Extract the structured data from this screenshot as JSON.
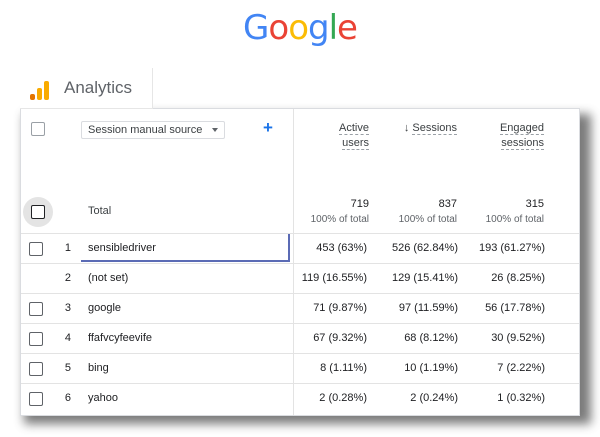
{
  "logo": {
    "text": "Google",
    "letters": [
      {
        "ch": "G",
        "color": "#4285F4"
      },
      {
        "ch": "o",
        "color": "#EA4335"
      },
      {
        "ch": "o",
        "color": "#FBBC05"
      },
      {
        "ch": "g",
        "color": "#4285F4"
      },
      {
        "ch": "l",
        "color": "#34A853"
      },
      {
        "ch": "e",
        "color": "#EA4335"
      }
    ]
  },
  "app": {
    "title": "Analytics",
    "icon": "analytics-bar-icon",
    "icon_colors": [
      "#F9AB00",
      "#E37400"
    ]
  },
  "table": {
    "dimension_selector": "Session manual source",
    "add_dimension_icon": "plus-icon",
    "headers": {
      "active_users": [
        "Active",
        "users"
      ],
      "sessions": "Sessions",
      "sessions_sort_icon": "arrow-down-icon",
      "engaged_sessions": [
        "Engaged",
        "sessions"
      ]
    },
    "totals": {
      "label": "Total",
      "active_users": "719",
      "active_users_pct": "100% of total",
      "sessions": "837",
      "sessions_pct": "100% of total",
      "engaged_sessions": "315",
      "engaged_sessions_pct": "100% of total"
    },
    "rows": [
      {
        "index": "1",
        "source": "sensibledriver",
        "active_users": "453 (63%)",
        "sessions": "526 (62.84%)",
        "engaged_sessions": "193 (61.27%)"
      },
      {
        "index": "2",
        "source": "(not set)",
        "active_users": "119 (16.55%)",
        "sessions": "129 (15.41%)",
        "engaged_sessions": "26 (8.25%)"
      },
      {
        "index": "3",
        "source": "google",
        "active_users": "71 (9.87%)",
        "sessions": "97 (11.59%)",
        "engaged_sessions": "56 (17.78%)"
      },
      {
        "index": "4",
        "source": "ffafvcyfeevife",
        "active_users": "67 (9.32%)",
        "sessions": "68 (8.12%)",
        "engaged_sessions": "30 (9.52%)"
      },
      {
        "index": "5",
        "source": "bing",
        "active_users": "8 (1.11%)",
        "sessions": "10 (1.19%)",
        "engaged_sessions": "7 (2.22%)"
      },
      {
        "index": "6",
        "source": "yahoo",
        "active_users": "2 (0.28%)",
        "sessions": "2 (0.24%)",
        "engaged_sessions": "1 (0.32%)"
      }
    ]
  }
}
